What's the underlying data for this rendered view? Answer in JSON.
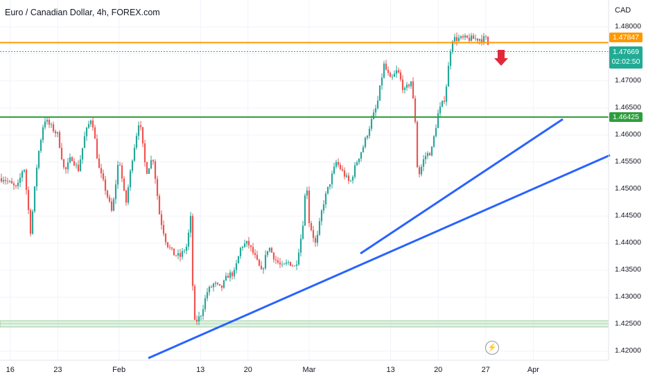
{
  "title": "Euro / Canadian Dollar, 4h, FOREX.com",
  "currency": "CAD",
  "badges": {
    "resistance": "1.47847",
    "last_price": "1.47669",
    "countdown": "02:02:50",
    "support": "1.46425"
  },
  "colors": {
    "up": "#26a69a",
    "down": "#ef5350",
    "resistance_line": "#ff9800",
    "support_line": "#2e9e3c",
    "trendline": "#2962ff",
    "arrow": "#e02a3a",
    "last_price_badge": "#22ab94"
  },
  "icons": [
    "down-arrow-icon",
    "lightning-icon"
  ],
  "chart_data": {
    "type": "candlestick",
    "ylim": [
      1.4185,
      1.4838
    ],
    "y_ticks": [
      "1.42000",
      "1.42500",
      "1.43000",
      "1.43500",
      "1.44000",
      "1.44500",
      "1.45000",
      "1.45500",
      "1.46000",
      "1.46500",
      "1.47000",
      "1.47500",
      "1.48000"
    ],
    "x_ticks": [
      "16",
      "23",
      "Feb",
      "13",
      "20",
      "Mar",
      "13",
      "20",
      "27",
      "Apr"
    ],
    "resistance": 1.47847,
    "support": 1.46425,
    "last_price": 1.47669,
    "support_zone": [
      1.4245,
      1.4256
    ],
    "trendlines": [
      {
        "from": [
          "Feb 2",
          1.4185
        ],
        "to": [
          "Apr 1",
          1.4573
        ]
      },
      {
        "from": [
          "Mar 2",
          1.4385
        ],
        "to": [
          "Mar 26",
          1.4635
        ]
      }
    ],
    "ohlc_anchors": [
      {
        "x": "Jan 15",
        "close": 1.452
      },
      {
        "x": "Jan 17",
        "close": 1.45
      },
      {
        "x": "Jan 18",
        "close": 1.4545
      },
      {
        "x": "Jan 19",
        "close": 1.442
      },
      {
        "x": "Jan 20",
        "close": 1.4555
      },
      {
        "x": "Jan 21",
        "close": 1.463
      },
      {
        "x": "Jan 23",
        "close": 1.46
      },
      {
        "x": "Jan 24",
        "close": 1.453
      },
      {
        "x": "Jan 25",
        "close": 1.456
      },
      {
        "x": "Jan 26",
        "close": 1.4535
      },
      {
        "x": "Jan 27",
        "close": 1.46
      },
      {
        "x": "Jan 28",
        "close": 1.4635
      },
      {
        "x": "Jan 29",
        "close": 1.454
      },
      {
        "x": "Jan 30",
        "close": 1.45
      },
      {
        "x": "Jan 31",
        "close": 1.4455
      },
      {
        "x": "Feb 1",
        "close": 1.456
      },
      {
        "x": "Feb 2",
        "close": 1.447
      },
      {
        "x": "Feb 3",
        "close": 1.456
      },
      {
        "x": "Feb 4",
        "close": 1.463
      },
      {
        "x": "Feb 5",
        "close": 1.453
      },
      {
        "x": "Feb 6",
        "close": 1.456
      },
      {
        "x": "Feb 7",
        "close": 1.445
      },
      {
        "x": "Feb 8",
        "close": 1.44
      },
      {
        "x": "Feb 9",
        "close": 1.438
      },
      {
        "x": "Feb 10",
        "close": 1.4375
      },
      {
        "x": "Feb 11",
        "close": 1.4395
      },
      {
        "x": "Feb 11.6",
        "close": 1.445
      },
      {
        "x": "Feb 12",
        "close": 1.425
      },
      {
        "x": "Feb 13",
        "close": 1.4265
      },
      {
        "x": "Feb 14",
        "close": 1.431
      },
      {
        "x": "Feb 15",
        "close": 1.4325
      },
      {
        "x": "Feb 16",
        "close": 1.4315
      },
      {
        "x": "Feb 17",
        "close": 1.434
      },
      {
        "x": "Feb 18",
        "close": 1.4345
      },
      {
        "x": "Feb 19",
        "close": 1.4395
      },
      {
        "x": "Feb 20",
        "close": 1.44
      },
      {
        "x": "Feb 21",
        "close": 1.4375
      },
      {
        "x": "Feb 22",
        "close": 1.4345
      },
      {
        "x": "Feb 23",
        "close": 1.4395
      },
      {
        "x": "Feb 24",
        "close": 1.437
      },
      {
        "x": "Feb 25",
        "close": 1.4355
      },
      {
        "x": "Feb 26",
        "close": 1.4365
      },
      {
        "x": "Feb 27",
        "close": 1.4355
      },
      {
        "x": "Feb 28",
        "close": 1.4425
      },
      {
        "x": "Feb 28.6",
        "close": 1.452
      },
      {
        "x": "Mar 1",
        "close": 1.444
      },
      {
        "x": "Mar 2",
        "close": 1.4395
      },
      {
        "x": "Mar 3",
        "close": 1.447
      },
      {
        "x": "Mar 4",
        "close": 1.451
      },
      {
        "x": "Mar 5",
        "close": 1.455
      },
      {
        "x": "Mar 6",
        "close": 1.453
      },
      {
        "x": "Mar 7",
        "close": 1.451
      },
      {
        "x": "Mar 8",
        "close": 1.455
      },
      {
        "x": "Mar 9",
        "close": 1.458
      },
      {
        "x": "Mar 10",
        "close": 1.462
      },
      {
        "x": "Mar 11",
        "close": 1.4655
      },
      {
        "x": "Mar 12",
        "close": 1.473
      },
      {
        "x": "Mar 13",
        "close": 1.47
      },
      {
        "x": "Mar 14",
        "close": 1.472
      },
      {
        "x": "Mar 15",
        "close": 1.468
      },
      {
        "x": "Mar 16",
        "close": 1.47
      },
      {
        "x": "Mar 16.6",
        "close": 1.463
      },
      {
        "x": "Mar 17",
        "close": 1.452
      },
      {
        "x": "Mar 18",
        "close": 1.456
      },
      {
        "x": "Mar 19",
        "close": 1.457
      },
      {
        "x": "Mar 20",
        "close": 1.464
      },
      {
        "x": "Mar 21",
        "close": 1.467
      },
      {
        "x": "Mar 21.6",
        "close": 1.4735
      },
      {
        "x": "Mar 22",
        "close": 1.4778
      }
    ]
  }
}
